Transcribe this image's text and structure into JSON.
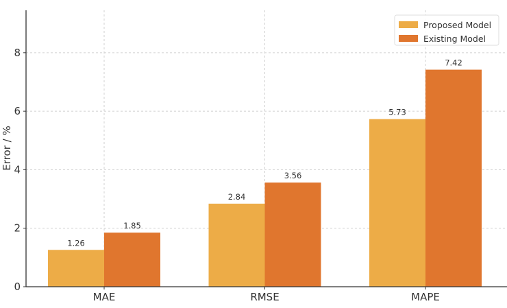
{
  "chart_data": {
    "type": "bar",
    "title": "",
    "xlabel": "",
    "ylabel": "Error / %",
    "ylim": [
      0,
      9.45
    ],
    "yticks": [
      0,
      2,
      4,
      6,
      8
    ],
    "categories": [
      "MAE",
      "RMSE",
      "MAPE"
    ],
    "series": [
      {
        "name": "Proposed Model",
        "values": [
          1.26,
          2.84,
          5.73
        ],
        "color": "#EDAC47"
      },
      {
        "name": "Existing Model",
        "values": [
          1.85,
          3.56,
          7.42
        ],
        "color": "#E0762E"
      }
    ],
    "data_labels": true,
    "grid": true,
    "legend_position": "top-right"
  }
}
